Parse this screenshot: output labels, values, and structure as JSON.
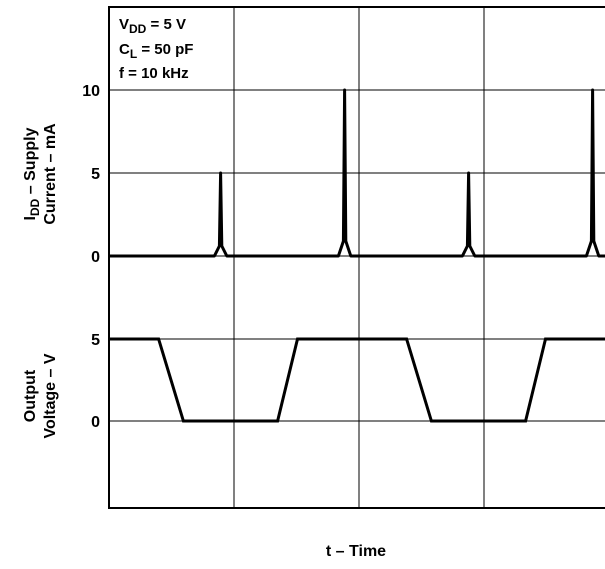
{
  "chart_data": {
    "type": "line",
    "xlabel": "t – Time",
    "grid": true,
    "annotation": {
      "vdd_main": "V",
      "vdd_sub": "DD",
      "vdd_rest": " = 5 V",
      "cl_main": "C",
      "cl_sub": "L",
      "cl_rest": " = 50 pF",
      "freq": "f = 10 kHz"
    },
    "panels": [
      {
        "name": "supply-current",
        "ylabel_line1_main": "I",
        "ylabel_line1_sub": "DD",
        "ylabel_line1_rest": " – Supply",
        "ylabel_line2": "Current – mA",
        "yticks": [
          "10",
          "5",
          "0"
        ],
        "unit": "mA",
        "series": [
          {
            "x": [
              0,
              4.25,
              4.45,
              4.5,
              4.55,
              4.75,
              9.25,
              9.45,
              9.5,
              9.55,
              9.75,
              14.25,
              14.45,
              14.5,
              14.55,
              14.75,
              19.25,
              19.45,
              19.5,
              19.55,
              19.75,
              20
            ],
            "y": [
              0,
              0,
              0.6,
              5,
              0.6,
              0,
              0,
              0.9,
              10,
              0.9,
              0,
              0,
              0.6,
              5,
              0.6,
              0,
              0,
              0.9,
              10,
              0.9,
              0,
              0
            ]
          }
        ]
      },
      {
        "name": "output-voltage",
        "ylabel_line1": "Output",
        "ylabel_line2": "Voltage – V",
        "yticks": [
          "5",
          "0"
        ],
        "unit": "V",
        "series": [
          {
            "x": [
              0,
              2,
              3,
              6.8,
              7.6,
              12,
              13,
              16.8,
              17.6,
              20
            ],
            "y": [
              5,
              5,
              0,
              0,
              5,
              5,
              0,
              0,
              5,
              5
            ]
          }
        ]
      }
    ]
  }
}
